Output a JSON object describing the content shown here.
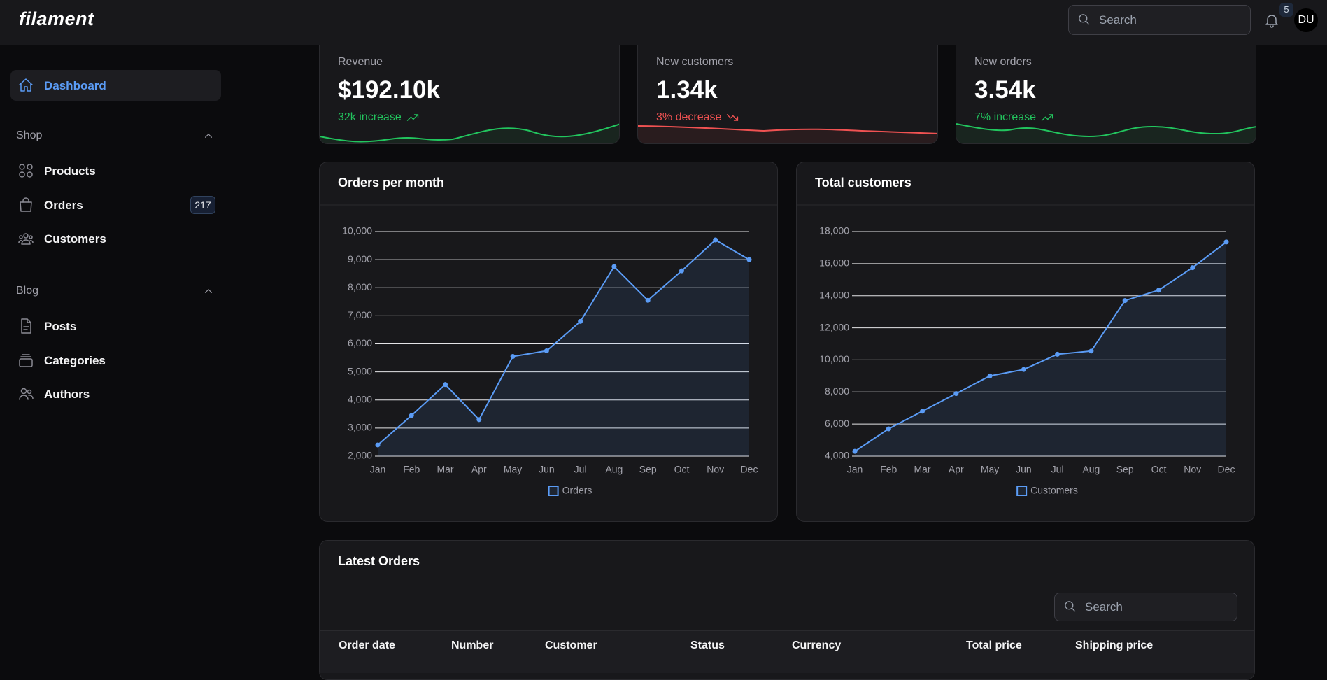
{
  "header": {
    "logo": "filament",
    "search_placeholder": "Search",
    "notifications": 5,
    "avatar": "DU"
  },
  "sidebar": {
    "dashboard": "Dashboard",
    "groups": [
      {
        "label": "Shop",
        "items": [
          {
            "label": "Products"
          },
          {
            "label": "Orders",
            "badge": 217
          },
          {
            "label": "Customers"
          }
        ]
      },
      {
        "label": "Blog",
        "items": [
          {
            "label": "Posts"
          },
          {
            "label": "Categories"
          },
          {
            "label": "Authors"
          }
        ]
      }
    ]
  },
  "stats": [
    {
      "label": "Revenue",
      "value": "$192.10k",
      "description": "32k increase",
      "color": "#22c55e"
    },
    {
      "label": "New customers",
      "value": "1.34k",
      "description": "3% decrease",
      "color": "#f05252"
    },
    {
      "label": "New orders",
      "value": "3.54k",
      "description": "7% increase",
      "color": "#22c55e"
    }
  ],
  "chart_data": [
    {
      "type": "line",
      "title": "Orders per month",
      "categories": [
        "Jan",
        "Feb",
        "Mar",
        "Apr",
        "May",
        "Jun",
        "Jul",
        "Aug",
        "Sep",
        "Oct",
        "Nov",
        "Dec"
      ],
      "series": [
        {
          "name": "Orders",
          "color": "#5b9cf6",
          "values": [
            2400,
            3450,
            4550,
            3300,
            5550,
            5750,
            6800,
            8750,
            7550,
            8600,
            9700,
            9000
          ]
        }
      ],
      "ylim": [
        2000,
        10000
      ],
      "yticks": [
        {
          "value": 2000,
          "label": "2,000"
        },
        {
          "value": 3000,
          "label": "3,000"
        },
        {
          "value": 4000,
          "label": "4,000"
        },
        {
          "value": 5000,
          "label": "5,000"
        },
        {
          "value": 6000,
          "label": "6,000"
        },
        {
          "value": 7000,
          "label": "7,000"
        },
        {
          "value": 8000,
          "label": "8,000"
        },
        {
          "value": 9000,
          "label": "9,000"
        },
        {
          "value": 10000,
          "label": "10,000"
        }
      ],
      "grid": true,
      "legend": "bottom"
    },
    {
      "type": "line",
      "title": "Total customers",
      "categories": [
        "Jan",
        "Feb",
        "Mar",
        "Apr",
        "May",
        "Jun",
        "Jul",
        "Aug",
        "Sep",
        "Oct",
        "Nov",
        "Dec"
      ],
      "series": [
        {
          "name": "Customers",
          "color": "#5b9cf6",
          "values": [
            4300,
            5700,
            6800,
            7900,
            9000,
            9400,
            10350,
            10550,
            13700,
            14350,
            15750,
            17350
          ]
        }
      ],
      "ylim": [
        4000,
        18000
      ],
      "yticks": [
        {
          "value": 4000,
          "label": "4,000"
        },
        {
          "value": 6000,
          "label": "6,000"
        },
        {
          "value": 8000,
          "label": "8,000"
        },
        {
          "value": 10000,
          "label": "10,000"
        },
        {
          "value": 12000,
          "label": "12,000"
        },
        {
          "value": 14000,
          "label": "14,000"
        },
        {
          "value": 16000,
          "label": "16,000"
        },
        {
          "value": 18000,
          "label": "18,000"
        }
      ],
      "grid": true,
      "legend": "bottom"
    }
  ],
  "latest_orders": {
    "title": "Latest Orders",
    "search_placeholder": "Search",
    "columns": [
      "Order date",
      "Number",
      "Customer",
      "Status",
      "Currency",
      "Total price",
      "Shipping price"
    ]
  }
}
